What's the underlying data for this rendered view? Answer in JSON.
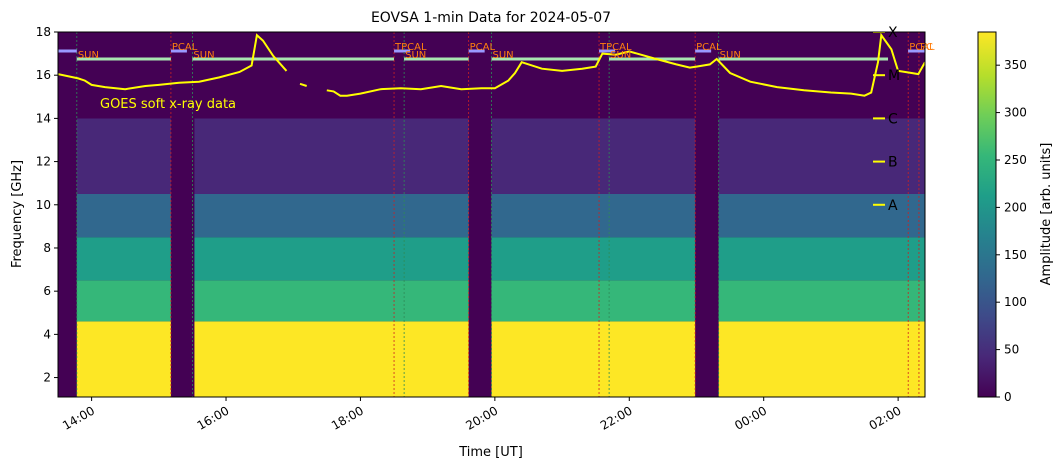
{
  "chart_data": {
    "type": "heatmap",
    "title": "EOVSA 1-min Data for 2024-05-07",
    "xlabel": "Time [UT]",
    "ylabel": "Frequency [GHz]",
    "ylim": [
      1.1,
      18
    ],
    "yticks": [
      2,
      4,
      6,
      8,
      10,
      12,
      14,
      16,
      18
    ],
    "xlim_hours": [
      13.5,
      26.4
    ],
    "xticks": [
      {
        "t": 14,
        "label": "14:00"
      },
      {
        "t": 16,
        "label": "16:00"
      },
      {
        "t": 18,
        "label": "18:00"
      },
      {
        "t": 20,
        "label": "20:00"
      },
      {
        "t": 22,
        "label": "22:00"
      },
      {
        "t": 24,
        "label": "00:00"
      },
      {
        "t": 26,
        "label": "02:00"
      }
    ],
    "colorbar": {
      "label": "Amplitude [arb. units]",
      "range": [
        0,
        385
      ],
      "ticks": [
        0,
        50,
        100,
        150,
        200,
        250,
        300,
        350
      ],
      "colors": [
        "#440154",
        "#482878",
        "#3e4a89",
        "#31688e",
        "#26828e",
        "#1f9e89",
        "#35b779",
        "#6ece58",
        "#b5de2b",
        "#fde725"
      ]
    },
    "data_gaps": [
      {
        "start": 15.18,
        "end": 15.53
      },
      {
        "start": 19.61,
        "end": 19.95
      },
      {
        "start": 22.98,
        "end": 23.33
      }
    ],
    "amplitude_profile_by_frequency": [
      {
        "f_min": 1.1,
        "f_max": 4.6,
        "amplitude": 385
      },
      {
        "f_min": 4.6,
        "f_max": 6.5,
        "amplitude": 250
      },
      {
        "f_min": 6.5,
        "f_max": 8.5,
        "amplitude": 200
      },
      {
        "f_min": 8.5,
        "f_max": 10.5,
        "amplitude": 110
      },
      {
        "f_min": 10.5,
        "f_max": 14,
        "amplitude": 55
      },
      {
        "f_min": 14,
        "f_max": 18,
        "amplitude": 15
      }
    ],
    "scan_markers": [
      {
        "t": 13.78,
        "label": "SUN",
        "type": "SUN"
      },
      {
        "t": 15.18,
        "label": "PCAL",
        "type": "PCAL"
      },
      {
        "t": 15.5,
        "label": "SUN",
        "type": "SUN"
      },
      {
        "t": 18.5,
        "label": "TPCAL",
        "type": "TPCAL"
      },
      {
        "t": 18.65,
        "label": "SUN",
        "type": "SUN"
      },
      {
        "t": 19.61,
        "label": "PCAL",
        "type": "PCAL"
      },
      {
        "t": 19.95,
        "label": "SUN",
        "type": "SUN"
      },
      {
        "t": 21.55,
        "label": "TPCAL",
        "type": "TPCAL"
      },
      {
        "t": 21.7,
        "label": "SUN",
        "type": "SUN"
      },
      {
        "t": 22.98,
        "label": "PCAL",
        "type": "PCAL"
      },
      {
        "t": 23.33,
        "label": "SUN",
        "type": "SUN"
      },
      {
        "t": 26.15,
        "label": "PCAL",
        "type": "PCAL"
      },
      {
        "t": 26.31,
        "label": "PC",
        "type": "PCAL"
      }
    ],
    "goes": {
      "label": "GOES soft x-ray data",
      "color": "#ffff00",
      "class_levels": [
        {
          "label": "X",
          "freq": 18.0
        },
        {
          "label": "M",
          "freq": 16.0
        },
        {
          "label": "C",
          "freq": 14.0
        },
        {
          "label": "B",
          "freq": 12.0
        },
        {
          "label": "A",
          "freq": 10.0
        }
      ],
      "segments": [
        [
          [
            13.5,
            16.05
          ],
          [
            13.8,
            15.85
          ],
          [
            13.9,
            15.75
          ],
          [
            14.0,
            15.55
          ],
          [
            14.2,
            15.45
          ],
          [
            14.5,
            15.35
          ],
          [
            14.8,
            15.5
          ],
          [
            15.0,
            15.55
          ],
          [
            15.3,
            15.65
          ],
          [
            15.6,
            15.7
          ],
          [
            15.9,
            15.9
          ],
          [
            16.2,
            16.15
          ],
          [
            16.38,
            16.45
          ],
          [
            16.46,
            17.85
          ],
          [
            16.55,
            17.6
          ],
          [
            16.7,
            16.9
          ],
          [
            16.9,
            16.2
          ]
        ],
        [
          [
            17.1,
            15.6
          ],
          [
            17.2,
            15.5
          ]
        ],
        [
          [
            17.5,
            15.3
          ],
          [
            17.6,
            15.25
          ],
          [
            17.7,
            15.05
          ],
          [
            17.8,
            15.05
          ],
          [
            18.0,
            15.15
          ],
          [
            18.3,
            15.35
          ],
          [
            18.6,
            15.4
          ],
          [
            18.9,
            15.35
          ],
          [
            19.2,
            15.5
          ],
          [
            19.5,
            15.35
          ],
          [
            19.8,
            15.4
          ],
          [
            20.0,
            15.4
          ],
          [
            20.2,
            15.75
          ],
          [
            20.3,
            16.1
          ],
          [
            20.4,
            16.6
          ],
          [
            20.7,
            16.3
          ],
          [
            21.0,
            16.2
          ],
          [
            21.3,
            16.3
          ],
          [
            21.5,
            16.4
          ],
          [
            21.6,
            17.0
          ],
          [
            21.8,
            16.95
          ],
          [
            22.0,
            17.1
          ],
          [
            22.4,
            16.75
          ],
          [
            22.7,
            16.5
          ],
          [
            22.9,
            16.35
          ],
          [
            23.0,
            16.4
          ],
          [
            23.2,
            16.5
          ],
          [
            23.3,
            16.75
          ],
          [
            23.5,
            16.1
          ],
          [
            23.8,
            15.7
          ],
          [
            24.2,
            15.45
          ],
          [
            24.6,
            15.3
          ],
          [
            25.0,
            15.2
          ],
          [
            25.3,
            15.15
          ],
          [
            25.5,
            15.05
          ],
          [
            25.6,
            15.2
          ],
          [
            25.7,
            16.6
          ],
          [
            25.75,
            17.85
          ],
          [
            25.9,
            17.2
          ],
          [
            26.0,
            16.2
          ],
          [
            26.2,
            16.1
          ],
          [
            26.3,
            16.05
          ],
          [
            26.4,
            16.6
          ]
        ]
      ]
    }
  }
}
